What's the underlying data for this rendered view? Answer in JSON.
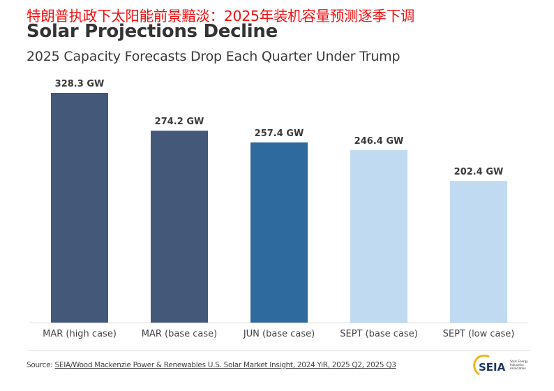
{
  "headline_cn": "特朗普执政下太阳能前景黯淡：2025年装机容量预测逐季下调",
  "title": "Solar Projections Decline",
  "subtitle": "2025 Capacity Forecasts Drop Each Quarter Under Trump",
  "source": {
    "prefix": "Source: ",
    "link": "SEIA/Wood Mackenzie Power & Renewables U.S. Solar Market Insight, 2024 YiR, 2025 Q2, 2025 Q3"
  },
  "logo": {
    "text": "SEIA",
    "tagline": "Solar Energy Industries Association"
  },
  "chart_data": {
    "type": "bar",
    "categories": [
      "MAR (high case)",
      "MAR (base case)",
      "JUN (base case)",
      "SEPT (base case)",
      "SEPT (low case)"
    ],
    "values": [
      328.3,
      274.2,
      257.4,
      246.4,
      202.4
    ],
    "data_labels": [
      "328.3 GW",
      "274.2 GW",
      "257.4 GW",
      "246.4 GW",
      "202.4 GW"
    ],
    "unit": "GW",
    "colors": [
      "#44587a",
      "#44587a",
      "#2e6a9e",
      "#bfdaf1",
      "#bfdaf1"
    ],
    "ylim": [
      0,
      330
    ],
    "grid": false,
    "legend": "none"
  }
}
